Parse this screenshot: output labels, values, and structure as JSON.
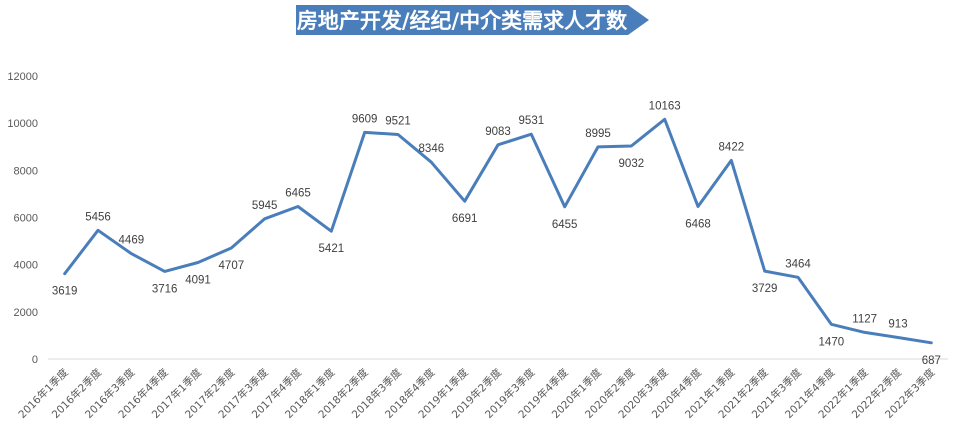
{
  "chart_data": {
    "type": "line",
    "title": "房地产开发/经纪/中介类需求人才数",
    "xlabel": "",
    "ylabel": "",
    "ylim": [
      0,
      12000
    ],
    "yticks": [
      0,
      2000,
      4000,
      6000,
      8000,
      10000,
      12000
    ],
    "grid": false,
    "legend": "none",
    "colors": {
      "line": "#4a7ebb",
      "title_bg": "#4a7ebb",
      "axis": "#d9d9d9"
    },
    "categories": [
      "2016年1季度",
      "2016年2季度",
      "2016年3季度",
      "2016年4季度",
      "2017年1季度",
      "2017年2季度",
      "2017年3季度",
      "2017年4季度",
      "2018年1季度",
      "2018年2季度",
      "2018年3季度",
      "2018年4季度",
      "2019年1季度",
      "2019年2季度",
      "2019年3季度",
      "2019年4季度",
      "2020年1季度",
      "2020年2季度",
      "2020年3季度",
      "2020年4季度",
      "2021年1季度",
      "2021年2季度",
      "2021年3季度",
      "2021年4季度",
      "2022年1季度",
      "2022年2季度",
      "2022年3季度"
    ],
    "series": [
      {
        "values": [
          3619,
          5456,
          4469,
          3716,
          4091,
          4707,
          5945,
          6465,
          5421,
          9609,
          9521,
          8346,
          6691,
          9083,
          9531,
          6455,
          8995,
          9032,
          10163,
          6468,
          8422,
          3729,
          3464,
          1470,
          1127,
          913,
          687
        ]
      }
    ],
    "label_position": [
      "below",
      "above",
      "above",
      "below",
      "below",
      "below",
      "above",
      "above",
      "below",
      "above",
      "above",
      "above",
      "below",
      "above",
      "above",
      "below",
      "above",
      "below",
      "above",
      "below",
      "above",
      "below",
      "above",
      "below",
      "above",
      "above",
      "below"
    ]
  }
}
